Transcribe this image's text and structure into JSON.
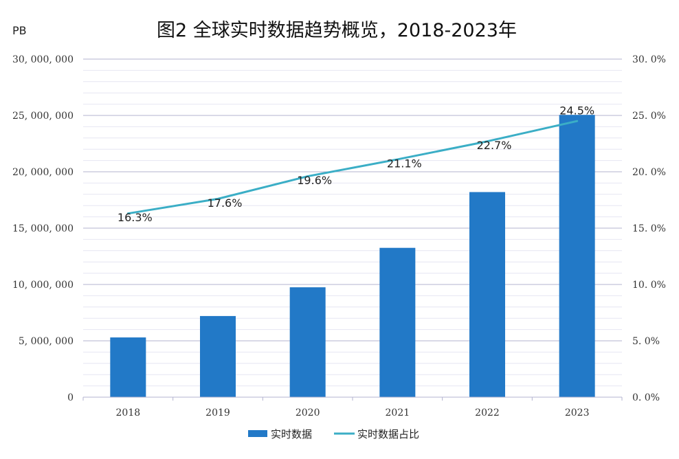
{
  "chart_data": {
    "type": "bar",
    "title": "图2 全球实时数据趋势概览，2018-2023年",
    "unit_label": "PB",
    "categories": [
      "2018",
      "2019",
      "2020",
      "2021",
      "2022",
      "2023"
    ],
    "series": [
      {
        "name": "实时数据",
        "type": "bar",
        "axis": "left",
        "color": "#2279c7",
        "values": [
          5300000,
          7200000,
          9750000,
          13250000,
          18200000,
          25050000
        ]
      },
      {
        "name": "实时数据占比",
        "type": "line",
        "axis": "right",
        "color": "#3baec6",
        "values": [
          16.3,
          17.6,
          19.6,
          21.1,
          22.7,
          24.5
        ],
        "labels": [
          "16.3%",
          "17.6%",
          "19.6%",
          "21.1%",
          "22.7%",
          "24.5%"
        ]
      }
    ],
    "y_left": {
      "ylim": [
        0,
        30000000
      ],
      "ticks": [
        0,
        5000000,
        10000000,
        15000000,
        20000000,
        25000000,
        30000000
      ],
      "tick_labels": [
        "0",
        "5, 000, 000",
        "10, 000, 000",
        "15, 000, 000",
        "20, 000, 000",
        "25, 000, 000",
        "30, 000, 000"
      ]
    },
    "y_right": {
      "ylim": [
        0,
        30
      ],
      "ticks": [
        0,
        5,
        10,
        15,
        20,
        25,
        30
      ],
      "tick_labels": [
        "0. 0%",
        "5. 0%",
        "10. 0%",
        "15. 0%",
        "20. 0%",
        "25. 0%",
        "30. 0%"
      ]
    },
    "grid": true,
    "legend_position": "bottom-center"
  }
}
